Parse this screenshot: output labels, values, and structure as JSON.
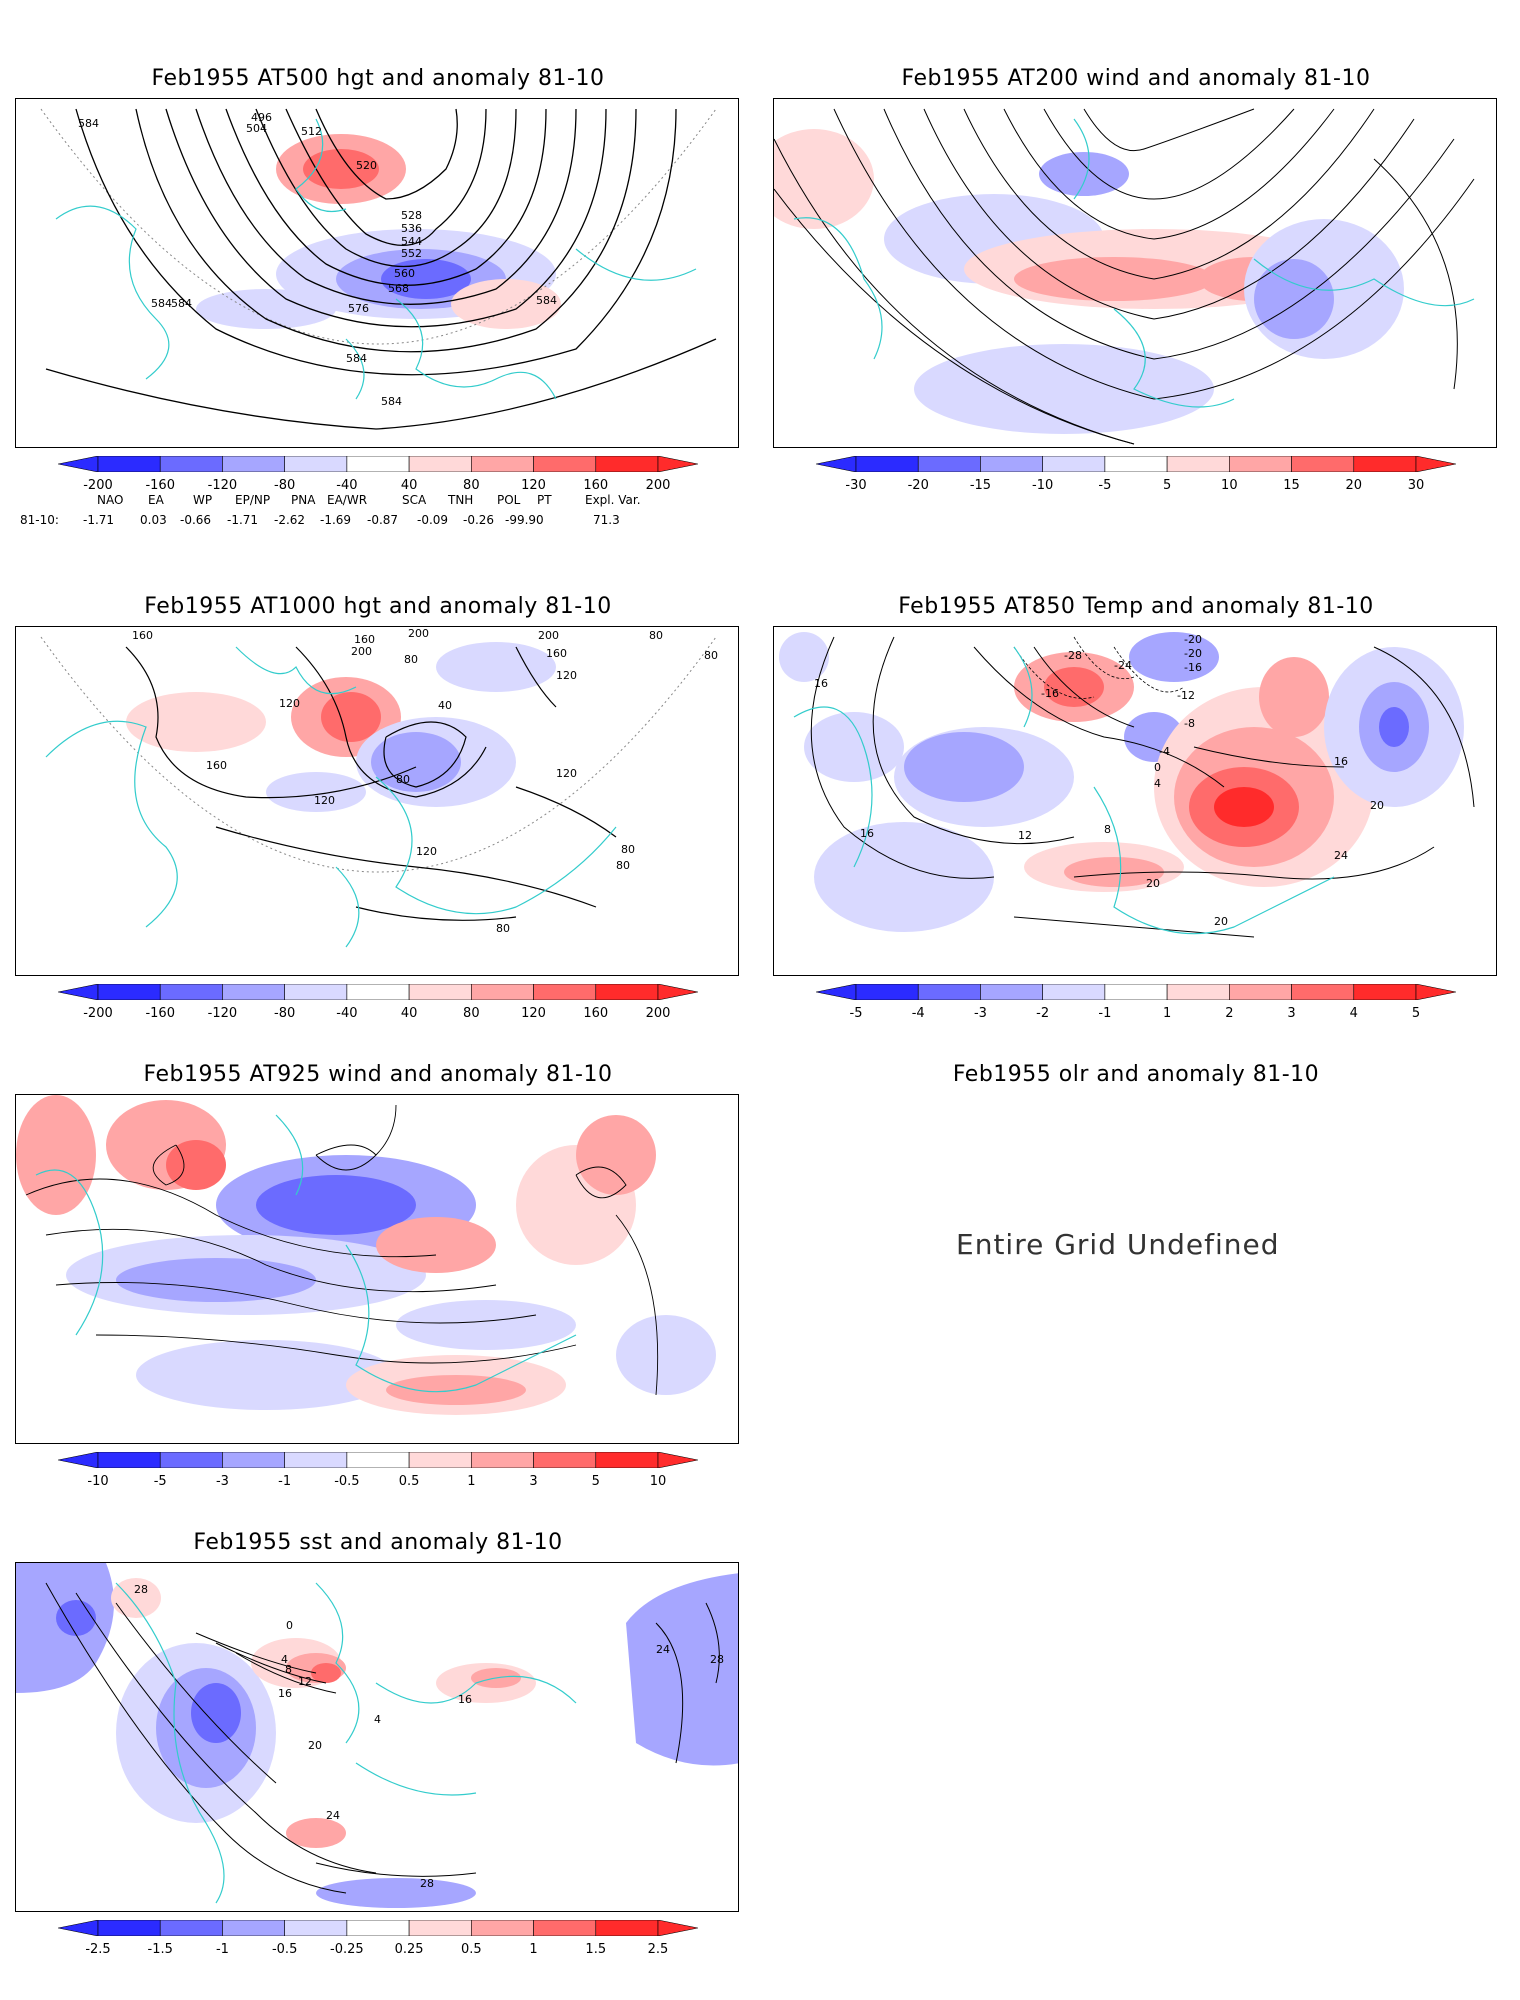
{
  "colors": {
    "blue_strong": "#2b2bff",
    "blue_mid": "#6b6bff",
    "blue_light": "#a6a6ff",
    "blue_pale": "#d9d9ff",
    "red_pale": "#ffd9d9",
    "red_light": "#ffa6a6",
    "red_mid": "#ff6b6b",
    "red_strong": "#ff2b2b",
    "coast": "#33cccc",
    "contour": "#000000"
  },
  "panels": [
    {
      "id": "at500",
      "title": "Feb1955 AT500 hgt and anomaly 81-10",
      "contour_labels": [
        "584",
        "496",
        "504",
        "512",
        "520",
        "528",
        "536",
        "544",
        "552",
        "560",
        "568",
        "576",
        "584",
        "584",
        "584",
        "584",
        "584"
      ],
      "colorbar": [
        "-200",
        "-160",
        "-120",
        "-80",
        "-40",
        "40",
        "80",
        "120",
        "160",
        "200"
      ]
    },
    {
      "id": "at200",
      "title": "Feb1955 AT200 wind and anomaly 81-10",
      "contour_labels": [],
      "colorbar": [
        "-30",
        "-20",
        "-15",
        "-10",
        "-5",
        "5",
        "10",
        "15",
        "20",
        "30"
      ]
    },
    {
      "id": "at1000",
      "title": "Feb1955 AT1000 hgt and anomaly 81-10",
      "contour_labels": [
        "160",
        "160",
        "200",
        "200",
        "80",
        "200",
        "160",
        "120",
        "80",
        "80",
        "40",
        "120",
        "160",
        "120",
        "80",
        "120",
        "120",
        "80",
        "80",
        "80"
      ],
      "colorbar": [
        "-200",
        "-160",
        "-120",
        "-80",
        "-40",
        "40",
        "80",
        "120",
        "160",
        "200"
      ]
    },
    {
      "id": "at850",
      "title": "Feb1955 AT850 Temp and anomaly 81-10",
      "contour_labels": [
        "-20",
        "-28",
        "-24",
        "-16",
        "-20",
        "-16",
        "-12",
        "-8",
        "-4",
        "0",
        "4",
        "8",
        "12",
        "16",
        "16",
        "16",
        "20",
        "20",
        "24",
        "20"
      ],
      "colorbar": [
        "-5",
        "-4",
        "-3",
        "-2",
        "-1",
        "1",
        "2",
        "3",
        "4",
        "5"
      ]
    },
    {
      "id": "at925",
      "title": "Feb1955 AT925 wind and anomaly 81-10",
      "contour_labels": [],
      "colorbar": [
        "-10",
        "-5",
        "-3",
        "-1",
        "-0.5",
        "0.5",
        "1",
        "3",
        "5",
        "10"
      ]
    },
    {
      "id": "olr",
      "title": "Feb1955 olr and anomaly 81-10",
      "message": "Entire Grid Undefined"
    },
    {
      "id": "sst",
      "title": "Feb1955 sst and anomaly 81-10",
      "contour_labels": [
        "28",
        "0",
        "4",
        "8",
        "12",
        "16",
        "4",
        "16",
        "20",
        "24",
        "24",
        "28",
        "28"
      ],
      "colorbar": [
        "-2.5",
        "-1.5",
        "-1",
        "-0.5",
        "-0.25",
        "0.25",
        "0.5",
        "1",
        "1.5",
        "2.5"
      ]
    }
  ],
  "indices": {
    "headers": [
      "NAO",
      "EA",
      "WP",
      "EP/NP",
      "PNA",
      "EA/WR",
      "SCA",
      "TNH",
      "POL",
      "PT",
      "Expl. Var."
    ],
    "row_label": "81-10:",
    "values": [
      "-1.71",
      "0.03",
      "-0.66",
      "-1.71",
      "-2.62",
      "-1.69",
      "-0.87",
      "-0.09",
      "-0.26",
      "-99.90",
      "71.3"
    ]
  }
}
